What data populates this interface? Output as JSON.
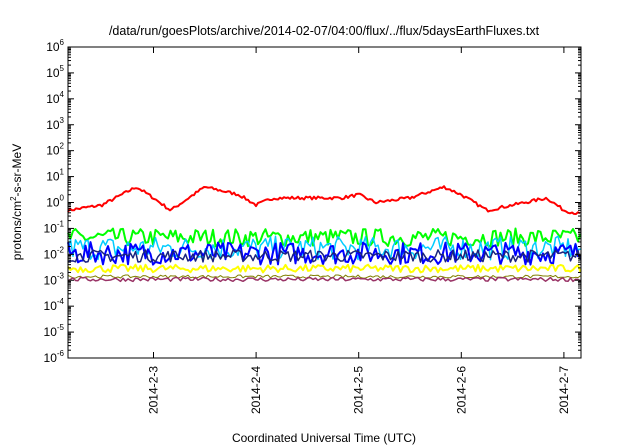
{
  "chart_data": {
    "type": "line",
    "title": "/data/run/goesPlots/archive/2014-02-07/04:00/flux/../flux/5daysEarthFluxes.txt",
    "xlabel": "Coordinated Universal Time (UTC)",
    "ylabel": "protons/cm2-s-sr-MeV",
    "ylabel_parts": {
      "pre": "protons/cm",
      "sup": "2",
      "post": "-s-sr-MeV"
    },
    "yscale": "log",
    "ylim_exp": [
      -6,
      6
    ],
    "y_ticks": [
      {
        "base": "10",
        "exp": "-6"
      },
      {
        "base": "10",
        "exp": "-5"
      },
      {
        "base": "10",
        "exp": "-4"
      },
      {
        "base": "10",
        "exp": "-3"
      },
      {
        "base": "10",
        "exp": "-2"
      },
      {
        "base": "10",
        "exp": "-1"
      },
      {
        "base": "10",
        "exp": "0"
      },
      {
        "base": "10",
        "exp": "1"
      },
      {
        "base": "10",
        "exp": "2"
      },
      {
        "base": "10",
        "exp": "3"
      },
      {
        "base": "10",
        "exp": "4"
      },
      {
        "base": "10",
        "exp": "5"
      },
      {
        "base": "10",
        "exp": "6"
      }
    ],
    "xlim": [
      "2014-02-02 04:00",
      "2014-02-07 04:00"
    ],
    "x_ticks": [
      {
        "label": "2014-2-3",
        "date": "2014-02-03"
      },
      {
        "label": "2014-2-4",
        "date": "2014-02-04"
      },
      {
        "label": "2014-2-5",
        "date": "2014-02-05"
      },
      {
        "label": "2014-2-6",
        "date": "2014-02-06"
      },
      {
        "label": "2014-2-7",
        "date": "2014-02-07"
      }
    ],
    "grid": false,
    "legend": "none",
    "series": [
      {
        "color": "#ff0000",
        "width": 2,
        "x": [
          "2014-02-02 04:00",
          "2014-02-02 12:00",
          "2014-02-02 20:00",
          "2014-02-03 00:00",
          "2014-02-03 04:00",
          "2014-02-03 12:00",
          "2014-02-03 20:00",
          "2014-02-04 00:00",
          "2014-02-04 04:00",
          "2014-02-04 12:00",
          "2014-02-04 20:00",
          "2014-02-05 00:00",
          "2014-02-05 04:00",
          "2014-02-05 12:00",
          "2014-02-05 20:00",
          "2014-02-06 00:00",
          "2014-02-06 06:00",
          "2014-02-06 12:00",
          "2014-02-06 20:00",
          "2014-02-07 00:00",
          "2014-02-07 04:00"
        ],
        "y": [
          0.5,
          0.8,
          4,
          1.5,
          0.5,
          4,
          2,
          0.8,
          1.5,
          1.5,
          1.5,
          2,
          1,
          1.5,
          4,
          2,
          0.5,
          0.8,
          1.5,
          0.5,
          0.35
        ]
      },
      {
        "color": "#00ff00",
        "width": 2,
        "band": [
          0.02,
          0.1
        ],
        "x": [
          "2014-02-02 04:00",
          "2014-02-07 04:00"
        ],
        "y": [
          0.04,
          0.04
        ]
      },
      {
        "color": "#00ccff",
        "width": 1.5,
        "band": [
          0.006,
          0.05
        ],
        "x": [
          "2014-02-02 04:00",
          "2014-02-07 04:00"
        ],
        "y": [
          0.02,
          0.02
        ]
      },
      {
        "color": "#0000ff",
        "width": 2,
        "band": [
          0.004,
          0.03
        ],
        "x": [
          "2014-02-02 04:00",
          "2014-02-07 04:00"
        ],
        "y": [
          0.012,
          0.012
        ]
      },
      {
        "color": "#1a237e",
        "width": 1.5,
        "band": [
          0.005,
          0.015
        ],
        "x": [
          "2014-02-02 04:00",
          "2014-02-07 04:00"
        ],
        "y": [
          0.008,
          0.008
        ]
      },
      {
        "color": "#ffff00",
        "width": 2,
        "band": [
          0.002,
          0.004
        ],
        "x": [
          "2014-02-02 04:00",
          "2014-02-07 04:00"
        ],
        "y": [
          0.003,
          0.003
        ]
      },
      {
        "color": "#7f7f00",
        "width": 1,
        "band": [
          0.0012,
          0.0016
        ],
        "x": [
          "2014-02-02 04:00",
          "2014-02-07 04:00"
        ],
        "y": [
          0.0014,
          0.0014
        ]
      },
      {
        "color": "#993366",
        "width": 1.5,
        "band": [
          0.0009,
          0.0013
        ],
        "x": [
          "2014-02-02 04:00",
          "2014-02-07 04:00"
        ],
        "y": [
          0.0011,
          0.0011
        ]
      }
    ]
  }
}
